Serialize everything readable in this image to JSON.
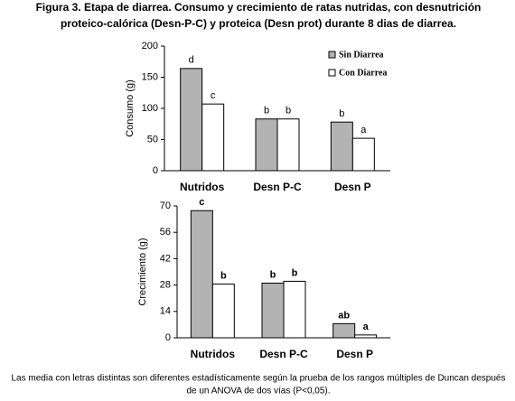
{
  "figure_title": [
    "Figura 3. Etapa de diarrea. Consumo y crecimiento de ratas nutridas, con desnutrición",
    "proteico-calórica (Desn-P-C) y proteica (Desn prot) durante 8 dias de diarrea."
  ],
  "caption": [
    "Las media con letras distintas son diferentes estadísticamente según la prueba de los rangos múltiples de Duncan después",
    "de un ANOVA de dos vías (P<0,05)."
  ],
  "chart_data": [
    {
      "type": "bar",
      "y_label": "Consumo (g)",
      "categories": [
        "Nutridos",
        "Desn P-C",
        "Desn P"
      ],
      "ylim": [
        0,
        200
      ],
      "yticks": [
        0,
        50,
        100,
        150,
        200
      ],
      "legend": "upper right",
      "series": [
        {
          "name": "Sin Diarrea",
          "color": "#b3b3b3",
          "values": [
            164,
            83,
            78
          ],
          "letters": [
            "d",
            "b",
            "b"
          ]
        },
        {
          "name": "Con Diarrea",
          "color": "#ffffff",
          "values": [
            107,
            83,
            52
          ],
          "letters": [
            "c",
            "b",
            "a"
          ]
        }
      ]
    },
    {
      "type": "bar",
      "y_label": "Crecimiento (g)",
      "categories": [
        "Nutridos",
        "Desn P-C",
        "Desn P"
      ],
      "ylim": [
        0,
        70
      ],
      "yticks": [
        0,
        14,
        28,
        42,
        56,
        70
      ],
      "series": [
        {
          "color": "#b3b3b3",
          "values": [
            67.5,
            29,
            7.5
          ],
          "letters": [
            "c",
            "b",
            "ab"
          ]
        },
        {
          "color": "#ffffff",
          "values": [
            28.5,
            30,
            1.5
          ],
          "letters": [
            "b",
            "b",
            "a"
          ]
        }
      ]
    }
  ]
}
